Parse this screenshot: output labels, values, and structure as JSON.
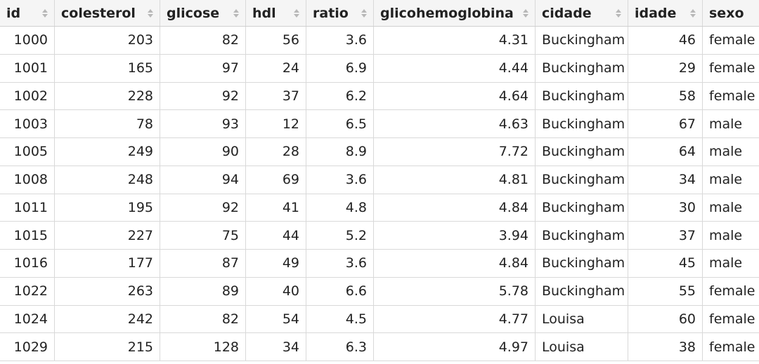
{
  "table": {
    "columns": [
      {
        "label": "id",
        "align": "num"
      },
      {
        "label": "colesterol",
        "align": "num"
      },
      {
        "label": "glicose",
        "align": "num"
      },
      {
        "label": "hdl",
        "align": "num"
      },
      {
        "label": "ratio",
        "align": "num"
      },
      {
        "label": "glicohemoglobina",
        "align": "num"
      },
      {
        "label": "cidade",
        "align": "txt"
      },
      {
        "label": "idade",
        "align": "num"
      },
      {
        "label": "sexo",
        "align": "txt"
      }
    ],
    "sort_icon": "sort-arrows-icon",
    "rows": [
      [
        "1000",
        "203",
        "82",
        "56",
        "3.6",
        "4.31",
        "Buckingham",
        "46",
        "female"
      ],
      [
        "1001",
        "165",
        "97",
        "24",
        "6.9",
        "4.44",
        "Buckingham",
        "29",
        "female"
      ],
      [
        "1002",
        "228",
        "92",
        "37",
        "6.2",
        "4.64",
        "Buckingham",
        "58",
        "female"
      ],
      [
        "1003",
        "78",
        "93",
        "12",
        "6.5",
        "4.63",
        "Buckingham",
        "67",
        "male"
      ],
      [
        "1005",
        "249",
        "90",
        "28",
        "8.9",
        "7.72",
        "Buckingham",
        "64",
        "male"
      ],
      [
        "1008",
        "248",
        "94",
        "69",
        "3.6",
        "4.81",
        "Buckingham",
        "34",
        "male"
      ],
      [
        "1011",
        "195",
        "92",
        "41",
        "4.8",
        "4.84",
        "Buckingham",
        "30",
        "male"
      ],
      [
        "1015",
        "227",
        "75",
        "44",
        "5.2",
        "3.94",
        "Buckingham",
        "37",
        "male"
      ],
      [
        "1016",
        "177",
        "87",
        "49",
        "3.6",
        "4.84",
        "Buckingham",
        "45",
        "male"
      ],
      [
        "1022",
        "263",
        "89",
        "40",
        "6.6",
        "5.78",
        "Buckingham",
        "55",
        "female"
      ],
      [
        "1024",
        "242",
        "82",
        "54",
        "4.5",
        "4.77",
        "Louisa",
        "60",
        "female"
      ],
      [
        "1029",
        "215",
        "128",
        "34",
        "6.3",
        "4.97",
        "Louisa",
        "38",
        "female"
      ]
    ]
  }
}
